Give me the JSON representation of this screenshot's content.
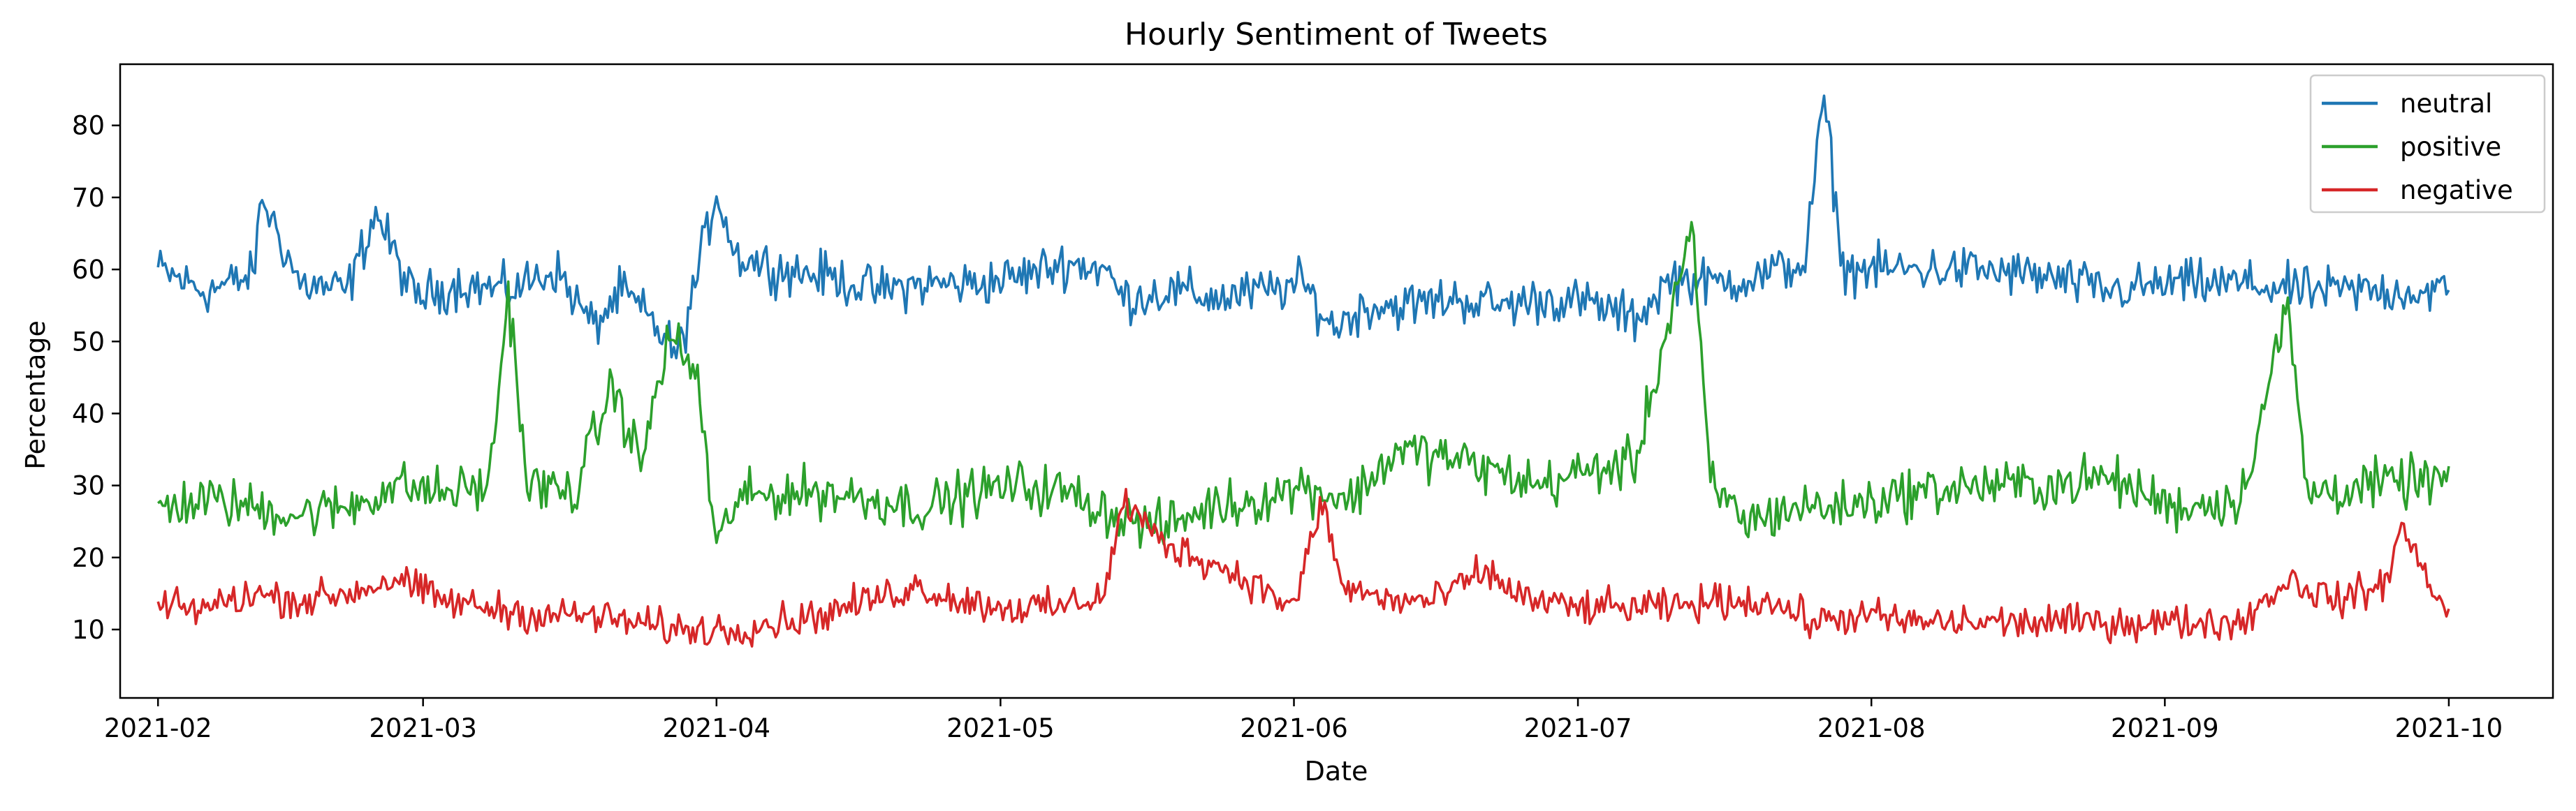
{
  "chart_data": {
    "type": "line",
    "title": "Hourly Sentiment of Tweets",
    "xlabel": "Date",
    "ylabel": "Percentage",
    "xlim": [
      "2021-01-28",
      "2021-10-12"
    ],
    "ylim": [
      0.5,
      88.5
    ],
    "x_ticks": [
      "2021-02",
      "2021-03",
      "2021-04",
      "2021-05",
      "2021-06",
      "2021-07",
      "2021-08",
      "2021-09",
      "2021-10"
    ],
    "y_ticks": [
      10,
      20,
      30,
      40,
      50,
      60,
      70,
      80
    ],
    "grid": false,
    "legend_position": "top-right",
    "x_start": "2021-02-01",
    "x_end": "2021-10-01",
    "series": [
      {
        "name": "neutral",
        "color": "#1f77b4",
        "points": [
          [
            "2021-02-01",
            60
          ],
          [
            "2021-02-06",
            57
          ],
          [
            "2021-02-11",
            59
          ],
          [
            "2021-02-12",
            70
          ],
          [
            "2021-02-16",
            58
          ],
          [
            "2021-02-21",
            57
          ],
          [
            "2021-02-24",
            68
          ],
          [
            "2021-02-28",
            56
          ],
          [
            "2021-03-05",
            58
          ],
          [
            "2021-03-10",
            57
          ],
          [
            "2021-03-15",
            60
          ],
          [
            "2021-03-19",
            52
          ],
          [
            "2021-03-22",
            57
          ],
          [
            "2021-03-25",
            53
          ],
          [
            "2021-03-28",
            48
          ],
          [
            "2021-04-01",
            71
          ],
          [
            "2021-04-03",
            62
          ],
          [
            "2021-04-08",
            60
          ],
          [
            "2021-04-13",
            59
          ],
          [
            "2021-04-18",
            57
          ],
          [
            "2021-04-23",
            58
          ],
          [
            "2021-04-28",
            58
          ],
          [
            "2021-05-03",
            59
          ],
          [
            "2021-05-08",
            61
          ],
          [
            "2021-05-12",
            60
          ],
          [
            "2021-05-14",
            56
          ],
          [
            "2021-05-19",
            57
          ],
          [
            "2021-05-24",
            56
          ],
          [
            "2021-05-29",
            57
          ],
          [
            "2021-06-02",
            58
          ],
          [
            "2021-06-05",
            52
          ],
          [
            "2021-06-09",
            55
          ],
          [
            "2021-06-13",
            55
          ],
          [
            "2021-06-18",
            56
          ],
          [
            "2021-06-23",
            55
          ],
          [
            "2021-06-28",
            56
          ],
          [
            "2021-07-03",
            55
          ],
          [
            "2021-07-07",
            53
          ],
          [
            "2021-07-11",
            59
          ],
          [
            "2021-07-15",
            58
          ],
          [
            "2021-07-20",
            59
          ],
          [
            "2021-07-25",
            61
          ],
          [
            "2021-07-27",
            84
          ],
          [
            "2021-07-29",
            60
          ],
          [
            "2021-08-05",
            60
          ],
          [
            "2021-08-12",
            60
          ],
          [
            "2021-08-19",
            59
          ],
          [
            "2021-08-26",
            57
          ],
          [
            "2021-09-02",
            58
          ],
          [
            "2021-09-09",
            58
          ],
          [
            "2021-09-16",
            57
          ],
          [
            "2021-09-23",
            57
          ],
          [
            "2021-10-01",
            57
          ]
        ]
      },
      {
        "name": "positive",
        "color": "#2ca02c",
        "points": [
          [
            "2021-02-01",
            27
          ],
          [
            "2021-02-06",
            28
          ],
          [
            "2021-02-11",
            27
          ],
          [
            "2021-02-16",
            26
          ],
          [
            "2021-02-21",
            27
          ],
          [
            "2021-02-26",
            30
          ],
          [
            "2021-03-03",
            29
          ],
          [
            "2021-03-08",
            30
          ],
          [
            "2021-03-10",
            57
          ],
          [
            "2021-03-12",
            30
          ],
          [
            "2021-03-17",
            29
          ],
          [
            "2021-03-21",
            44
          ],
          [
            "2021-03-24",
            33
          ],
          [
            "2021-03-27",
            51
          ],
          [
            "2021-03-30",
            45
          ],
          [
            "2021-04-01",
            21
          ],
          [
            "2021-04-03",
            28
          ],
          [
            "2021-04-08",
            29
          ],
          [
            "2021-04-13",
            29
          ],
          [
            "2021-04-18",
            28
          ],
          [
            "2021-04-23",
            27
          ],
          [
            "2021-04-28",
            29
          ],
          [
            "2021-05-03",
            30
          ],
          [
            "2021-05-08",
            29
          ],
          [
            "2021-05-13",
            26
          ],
          [
            "2021-05-18",
            24
          ],
          [
            "2021-05-23",
            27
          ],
          [
            "2021-05-28",
            28
          ],
          [
            "2021-06-02",
            30
          ],
          [
            "2021-06-07",
            28
          ],
          [
            "2021-06-12",
            35
          ],
          [
            "2021-06-17",
            34
          ],
          [
            "2021-06-22",
            32
          ],
          [
            "2021-06-27",
            30
          ],
          [
            "2021-07-02",
            32
          ],
          [
            "2021-07-07",
            33
          ],
          [
            "2021-07-13",
            66
          ],
          [
            "2021-07-15",
            30
          ],
          [
            "2021-07-19",
            25
          ],
          [
            "2021-07-24",
            27
          ],
          [
            "2021-07-29",
            27
          ],
          [
            "2021-08-05",
            29
          ],
          [
            "2021-08-12",
            30
          ],
          [
            "2021-08-19",
            30
          ],
          [
            "2021-08-26",
            31
          ],
          [
            "2021-09-02",
            27
          ],
          [
            "2021-09-09",
            28
          ],
          [
            "2021-09-14",
            55
          ],
          [
            "2021-09-16",
            29
          ],
          [
            "2021-09-23",
            30
          ],
          [
            "2021-10-01",
            31
          ]
        ]
      },
      {
        "name": "negative",
        "color": "#d62728",
        "points": [
          [
            "2021-02-01",
            13
          ],
          [
            "2021-02-06",
            13
          ],
          [
            "2021-02-11",
            15
          ],
          [
            "2021-02-16",
            14
          ],
          [
            "2021-02-21",
            15
          ],
          [
            "2021-02-26",
            17
          ],
          [
            "2021-03-03",
            14
          ],
          [
            "2021-03-08",
            13
          ],
          [
            "2021-03-13",
            12
          ],
          [
            "2021-03-18",
            12
          ],
          [
            "2021-03-23",
            11
          ],
          [
            "2021-03-28",
            10
          ],
          [
            "2021-04-02",
            10
          ],
          [
            "2021-04-07",
            11
          ],
          [
            "2021-04-12",
            12
          ],
          [
            "2021-04-17",
            14
          ],
          [
            "2021-04-22",
            16
          ],
          [
            "2021-04-27",
            14
          ],
          [
            "2021-05-02",
            13
          ],
          [
            "2021-05-07",
            13
          ],
          [
            "2021-05-12",
            15
          ],
          [
            "2021-05-14",
            28
          ],
          [
            "2021-05-18",
            22
          ],
          [
            "2021-05-22",
            20
          ],
          [
            "2021-05-27",
            17
          ],
          [
            "2021-06-01",
            13
          ],
          [
            "2021-06-04",
            28
          ],
          [
            "2021-06-06",
            16
          ],
          [
            "2021-06-11",
            14
          ],
          [
            "2021-06-16",
            14
          ],
          [
            "2021-06-21",
            18
          ],
          [
            "2021-06-26",
            14
          ],
          [
            "2021-07-01",
            13
          ],
          [
            "2021-07-06",
            13
          ],
          [
            "2021-07-11",
            13
          ],
          [
            "2021-07-16",
            14
          ],
          [
            "2021-07-21",
            14
          ],
          [
            "2021-07-26",
            11
          ],
          [
            "2021-07-31",
            12
          ],
          [
            "2021-08-05",
            11
          ],
          [
            "2021-08-12",
            11
          ],
          [
            "2021-08-19",
            11
          ],
          [
            "2021-08-26",
            11
          ],
          [
            "2021-09-02",
            11
          ],
          [
            "2021-09-09",
            11
          ],
          [
            "2021-09-14",
            17
          ],
          [
            "2021-09-19",
            14
          ],
          [
            "2021-09-24",
            16
          ],
          [
            "2021-09-26",
            24
          ],
          [
            "2021-10-01",
            12
          ]
        ]
      }
    ]
  }
}
